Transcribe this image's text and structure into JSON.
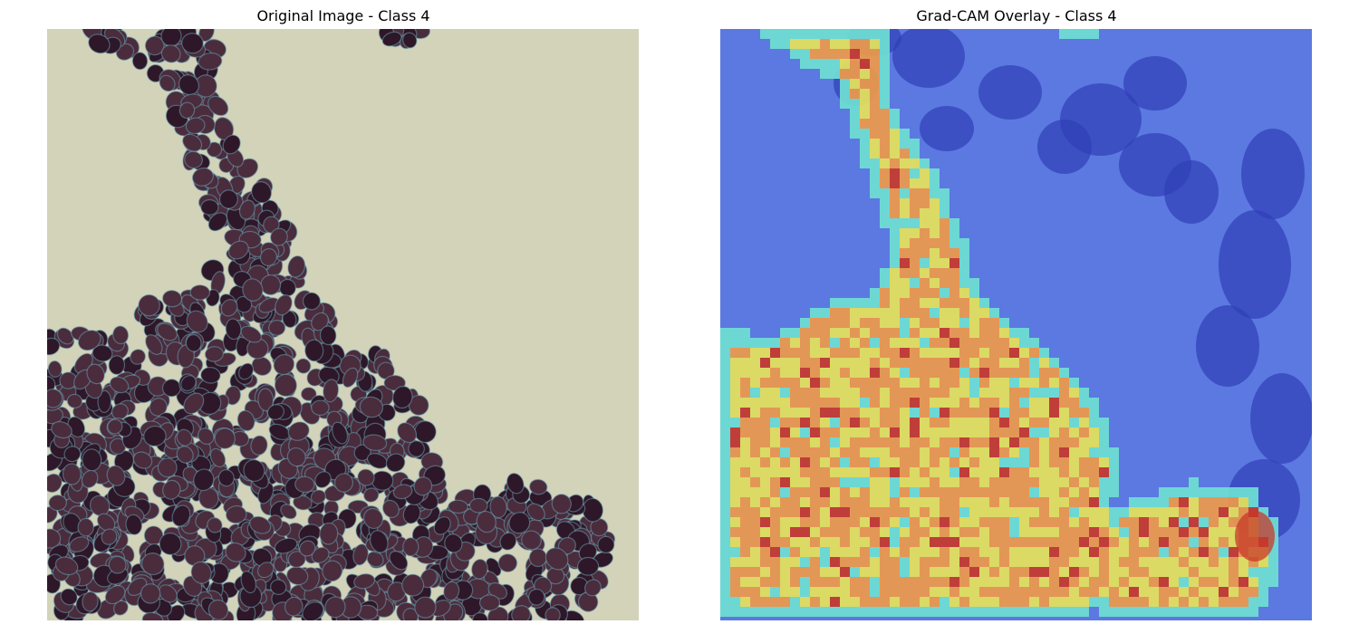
{
  "figure": {
    "panels": [
      {
        "title": "Original Image - Class 4",
        "image_type": "micrograph"
      },
      {
        "title": "Grad-CAM Overlay - Class 4",
        "image_type": "heatmap-overlay",
        "colormap": "jet"
      }
    ]
  },
  "colors": {
    "background": "#ffffff",
    "micrograph_bg": "#d2d3b9",
    "cell_fill": "#4a2c3d",
    "cell_dark": "#2e1728",
    "cell_rim": "#6aa3b0",
    "cam_low": "#5b79e0",
    "cam_cell_low": "#2f3fb8",
    "cam_edge": "#6fe0d2",
    "cam_mid": "#e6e35a",
    "cam_high": "#ef9a4a",
    "cam_peak": "#c83a2a"
  }
}
